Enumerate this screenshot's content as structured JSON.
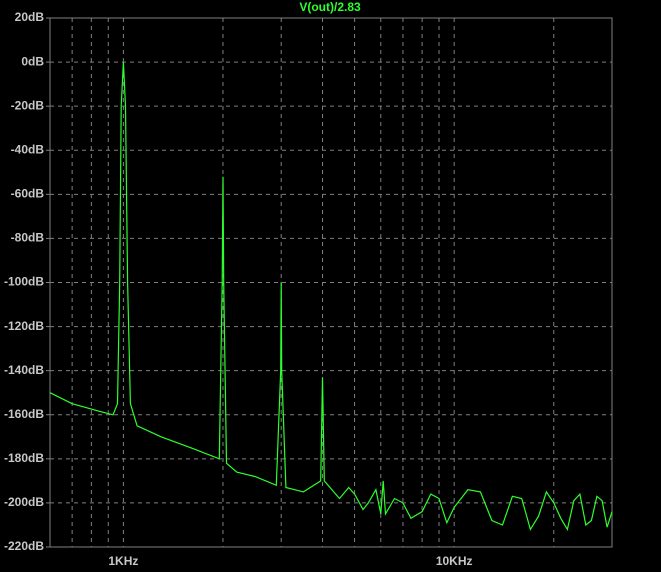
{
  "chart_data": {
    "type": "line",
    "xscale": "log",
    "grid": true,
    "xlim": [
      600,
      30000
    ],
    "ylim": [
      -220,
      20
    ],
    "xticks": [
      {
        "value": 1000,
        "label": "1KHz"
      },
      {
        "value": 10000,
        "label": "10KHz"
      }
    ],
    "xminor": [
      700,
      800,
      900,
      2000,
      3000,
      4000,
      5000,
      6000,
      7000,
      8000,
      9000,
      20000,
      30000
    ],
    "yticks": [
      {
        "value": 20,
        "label": "20dB"
      },
      {
        "value": 0,
        "label": "0dB"
      },
      {
        "value": -20,
        "label": "-20dB"
      },
      {
        "value": -40,
        "label": "-40dB"
      },
      {
        "value": -60,
        "label": "-60dB"
      },
      {
        "value": -80,
        "label": "-80dB"
      },
      {
        "value": -100,
        "label": "-100dB"
      },
      {
        "value": -120,
        "label": "-120dB"
      },
      {
        "value": -140,
        "label": "-140dB"
      },
      {
        "value": -160,
        "label": "-160dB"
      },
      {
        "value": -180,
        "label": "-180dB"
      },
      {
        "value": -200,
        "label": "-200dB"
      },
      {
        "value": -220,
        "label": "-220dB"
      }
    ],
    "x": [
      600,
      700,
      850,
      930,
      960,
      975,
      985,
      1000,
      1015,
      1030,
      1050,
      1100,
      1300,
      1600,
      1950,
      1990,
      2000,
      2010,
      2050,
      2200,
      2500,
      2900,
      2990,
      3000,
      3010,
      3100,
      3500,
      3950,
      4000,
      4050,
      4500,
      4800,
      5000,
      5300,
      5500,
      5800,
      6000,
      6100,
      6200,
      6600,
      7000,
      7400,
      8000,
      8500,
      9000,
      9500,
      10000,
      11000,
      12000,
      13000,
      14000,
      15000,
      16000,
      17000,
      18000,
      19000,
      20000,
      21000,
      22000,
      23000,
      24000,
      25000,
      26000,
      27000,
      28000,
      29000,
      30000
    ],
    "series": [
      {
        "name": "V(out)/2.83",
        "color": "#2cff2c",
        "values": [
          -150,
          -155,
          -158.5,
          -160,
          -155,
          -100,
          -20,
          0,
          -20,
          -100,
          -155,
          -165,
          -170,
          -175,
          -180,
          -100,
          -52,
          -100,
          -182,
          -186,
          -188,
          -192,
          -140,
          -100,
          -140,
          -193,
          -195,
          -190,
          -143,
          -190,
          -198,
          -193,
          -196,
          -203,
          -200,
          -194,
          -205,
          -190,
          -205,
          -198,
          -200,
          -207,
          -204,
          -196,
          -198,
          -209,
          -202,
          -194,
          -195,
          -208,
          -210,
          -197,
          -198,
          -212,
          -206,
          -195,
          -200,
          -207,
          -212,
          -199,
          -196,
          -210,
          -208,
          -197,
          -199,
          -211,
          -204
        ]
      }
    ]
  }
}
